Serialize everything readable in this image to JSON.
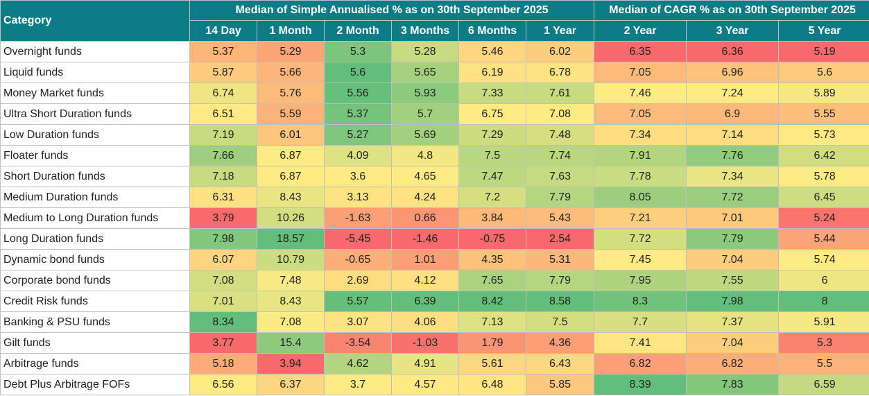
{
  "chart_data": {
    "type": "table",
    "title": "",
    "category_header": "Category",
    "groups": [
      {
        "label": "Median of Simple Annualised % as on 30th September 2025",
        "span": 6
      },
      {
        "label": "Median of CAGR % as on 30th September 2025",
        "span": 3
      }
    ],
    "columns": [
      "14 Day",
      "1 Month",
      "2 Month",
      "3 Months",
      "6 Months",
      "1 Year",
      "2 Year",
      "3 Year",
      "5 Year"
    ],
    "rows": [
      {
        "category": "Overnight funds",
        "values": [
          "5.37",
          "5.29",
          "5.3",
          "5.28",
          "5.46",
          "6.02",
          "6.35",
          "6.36",
          "5.19"
        ]
      },
      {
        "category": "Liquid funds",
        "values": [
          "5.87",
          "5.66",
          "5.6",
          "5.65",
          "6.19",
          "6.78",
          "7.05",
          "6.96",
          "5.6"
        ]
      },
      {
        "category": "Money Market funds",
        "values": [
          "6.74",
          "5.76",
          "5.56",
          "5.93",
          "7.33",
          "7.61",
          "7.46",
          "7.24",
          "5.89"
        ]
      },
      {
        "category": "Ultra Short Duration funds",
        "values": [
          "6.51",
          "5.59",
          "5.37",
          "5.7",
          "6.75",
          "7.08",
          "7.05",
          "6.9",
          "5.55"
        ]
      },
      {
        "category": "Low Duration funds",
        "values": [
          "7.19",
          "6.01",
          "5.27",
          "5.69",
          "7.29",
          "7.48",
          "7.34",
          "7.14",
          "5.73"
        ]
      },
      {
        "category": "Floater funds",
        "values": [
          "7.66",
          "6.87",
          "4.09",
          "4.8",
          "7.5",
          "7.74",
          "7.91",
          "7.76",
          "6.42"
        ]
      },
      {
        "category": "Short Duration funds",
        "values": [
          "7.18",
          "6.87",
          "3.6",
          "4.65",
          "7.47",
          "7.63",
          "7.78",
          "7.34",
          "5.78"
        ]
      },
      {
        "category": "Medium Duration funds",
        "values": [
          "6.31",
          "8.43",
          "3.13",
          "4.24",
          "7.2",
          "7.79",
          "8.05",
          "7.72",
          "6.45"
        ]
      },
      {
        "category": "Medium to Long Duration funds",
        "values": [
          "3.79",
          "10.26",
          "-1.63",
          "0.66",
          "3.84",
          "5.43",
          "7.21",
          "7.01",
          "5.24"
        ]
      },
      {
        "category": "Long Duration funds",
        "values": [
          "7.98",
          "18.57",
          "-5.45",
          "-1.46",
          "-0.75",
          "2.54",
          "7.72",
          "7.79",
          "5.44"
        ]
      },
      {
        "category": "Dynamic bond funds",
        "values": [
          "6.07",
          "10.79",
          "-0.65",
          "1.01",
          "4.35",
          "5.31",
          "7.45",
          "7.04",
          "5.74"
        ]
      },
      {
        "category": "Corporate bond funds",
        "values": [
          "7.08",
          "7.48",
          "2.69",
          "4.12",
          "7.65",
          "7.79",
          "7.95",
          "7.55",
          "6"
        ]
      },
      {
        "category": "Credit Risk funds",
        "values": [
          "7.01",
          "8.43",
          "5.57",
          "6.39",
          "8.42",
          "8.58",
          "8.3",
          "7.98",
          "8"
        ]
      },
      {
        "category": "Banking & PSU funds",
        "values": [
          "8.34",
          "7.08",
          "3.07",
          "4.06",
          "7.13",
          "7.5",
          "7.7",
          "7.37",
          "5.91"
        ]
      },
      {
        "category": "Gilt funds",
        "values": [
          "3.77",
          "15.4",
          "-3.54",
          "-1.03",
          "1.79",
          "4.36",
          "7.41",
          "7.04",
          "5.3"
        ]
      },
      {
        "category": "Arbitrage funds",
        "values": [
          "5.18",
          "3.94",
          "4.62",
          "4.91",
          "5.61",
          "6.43",
          "6.82",
          "6.82",
          "5.5"
        ]
      },
      {
        "category": "Debt Plus Arbitrage FOFs",
        "values": [
          "6.56",
          "6.37",
          "3.7",
          "4.57",
          "6.48",
          "5.85",
          "8.39",
          "7.83",
          "6.59"
        ]
      }
    ],
    "color_scale": {
      "low": "#f8696b",
      "mid": "#ffeb84",
      "high": "#63be7b",
      "scope": "per-column"
    }
  }
}
